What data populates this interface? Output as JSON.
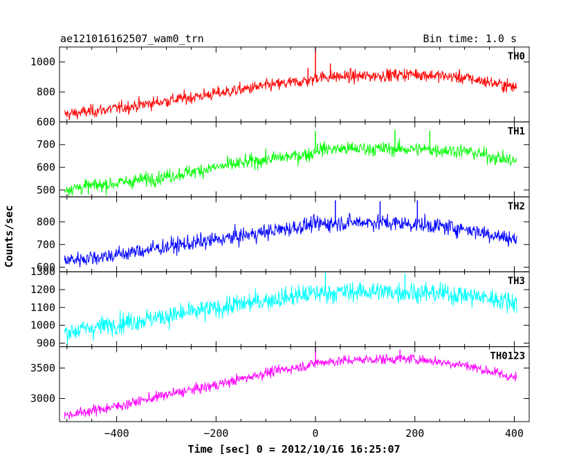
{
  "chart_data": {
    "type": "line",
    "title": "ae121016162507_wam0_trn",
    "bin_time_label": "Bin time: 1.0 s",
    "xlabel": "Time [sec] 0 = 2012/10/16 16:25:07",
    "ylabel": "Counts/sec",
    "xlim": [
      -515,
      430
    ],
    "x_ticks": [
      -400,
      -200,
      0,
      200,
      400
    ],
    "x_tick_labels": [
      "−400",
      "−200",
      "0",
      "200",
      "400"
    ],
    "x_data_range": [
      -505,
      405
    ],
    "grid": false,
    "panels": [
      {
        "name": "TH0",
        "color": "#ff0000",
        "ylim": [
          600,
          1100
        ],
        "y_ticks": [
          600,
          800,
          1000
        ],
        "y_tick_labels": [
          "600",
          "800",
          "1000"
        ],
        "trend": [
          [
            -505,
            650
          ],
          [
            -400,
            690
          ],
          [
            -300,
            740
          ],
          [
            -200,
            790
          ],
          [
            -100,
            840
          ],
          [
            -5,
            880
          ],
          [
            0,
            900
          ],
          [
            100,
            905
          ],
          [
            200,
            920
          ],
          [
            300,
            895
          ],
          [
            405,
            830
          ]
        ],
        "noise": 30,
        "spikes": [
          [
            0,
            1100
          ],
          [
            -15,
            960
          ],
          [
            30,
            990
          ]
        ]
      },
      {
        "name": "TH1",
        "color": "#00ff00",
        "ylim": [
          470,
          800
        ],
        "y_ticks": [
          500,
          600,
          700
        ],
        "y_tick_labels": [
          "500",
          "600",
          "700"
        ],
        "trend": [
          [
            -505,
            505
          ],
          [
            -400,
            530
          ],
          [
            -300,
            560
          ],
          [
            -200,
            600
          ],
          [
            -100,
            635
          ],
          [
            -5,
            660
          ],
          [
            0,
            680
          ],
          [
            100,
            682
          ],
          [
            200,
            680
          ],
          [
            300,
            672
          ],
          [
            405,
            625
          ]
        ],
        "noise": 22,
        "spikes": [
          [
            0,
            760
          ],
          [
            160,
            765
          ],
          [
            230,
            760
          ]
        ]
      },
      {
        "name": "TH2",
        "color": "#0000ff",
        "ylim": [
          580,
          910
        ],
        "y_ticks": [
          600,
          700,
          800
        ],
        "y_tick_labels": [
          "600",
          "700",
          "800"
        ],
        "trend": [
          [
            -505,
            630
          ],
          [
            -400,
            655
          ],
          [
            -300,
            690
          ],
          [
            -200,
            720
          ],
          [
            -100,
            755
          ],
          [
            0,
            790
          ],
          [
            100,
            800
          ],
          [
            200,
            790
          ],
          [
            300,
            770
          ],
          [
            405,
            720
          ]
        ],
        "noise": 25,
        "spikes": [
          [
            40,
            895
          ],
          [
            130,
            890
          ],
          [
            205,
            895
          ]
        ]
      },
      {
        "name": "TH3",
        "color": "#00ffff",
        "ylim": [
          880,
          1300
        ],
        "y_ticks": [
          900,
          1000,
          1100,
          1200,
          1300
        ],
        "y_tick_labels": [
          "900",
          "1000",
          "1100",
          "1200",
          "1300"
        ],
        "trend": [
          [
            -505,
            960
          ],
          [
            -400,
            1010
          ],
          [
            -300,
            1050
          ],
          [
            -200,
            1095
          ],
          [
            -100,
            1140
          ],
          [
            0,
            1180
          ],
          [
            100,
            1190
          ],
          [
            200,
            1185
          ],
          [
            300,
            1170
          ],
          [
            405,
            1130
          ]
        ],
        "noise": 40,
        "spikes": [
          [
            20,
            1295
          ],
          [
            180,
            1290
          ]
        ]
      },
      {
        "name": "TH0123",
        "color": "#ff00ff",
        "ylim": [
          2620,
          3850
        ],
        "y_ticks": [
          3000,
          3500
        ],
        "y_tick_labels": [
          "3000",
          "3500"
        ],
        "trend": [
          [
            -505,
            2720
          ],
          [
            -400,
            2870
          ],
          [
            -300,
            3060
          ],
          [
            -200,
            3220
          ],
          [
            -100,
            3420
          ],
          [
            -5,
            3560
          ],
          [
            0,
            3590
          ],
          [
            100,
            3640
          ],
          [
            200,
            3650
          ],
          [
            300,
            3550
          ],
          [
            405,
            3330
          ]
        ],
        "noise": 60,
        "spikes": [
          [
            0,
            3850
          ],
          [
            170,
            3800
          ]
        ]
      }
    ]
  }
}
